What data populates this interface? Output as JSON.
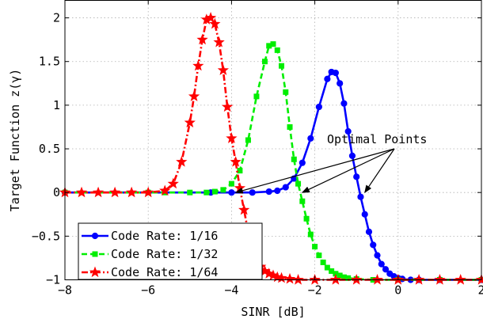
{
  "chart_data": {
    "type": "line",
    "xlabel": "SINR [dB]",
    "ylabel": "Target Function z(γ)",
    "xlim": [
      -8,
      2
    ],
    "ylim": [
      -1,
      2.2
    ],
    "xticks": [
      -8,
      -6,
      -4,
      -2,
      0,
      2
    ],
    "yticks": [
      -1,
      -0.5,
      0,
      0.5,
      1,
      1.5,
      2
    ],
    "xtick_labels": [
      "−8",
      "−6",
      "−4",
      "−2",
      "0",
      "2"
    ],
    "ytick_labels": [
      "−1",
      "−0.5",
      "0",
      "0.5",
      "1",
      "1.5",
      "2"
    ],
    "grid": true,
    "legend_position": "bottom-left",
    "annotation": {
      "text": "Optimal Points",
      "targets": [
        [
          -3.9,
          0
        ],
        [
          -2.3,
          0
        ],
        [
          -0.8,
          0
        ]
      ]
    },
    "series": [
      {
        "name": "Code Rate: 1/16",
        "color": "#0000ff",
        "marker": "circle",
        "dash": "solid",
        "x": [
          -8,
          -4.5,
          -4,
          -3.5,
          -3.1,
          -2.9,
          -2.7,
          -2.5,
          -2.3,
          -2.1,
          -1.9,
          -1.7,
          -1.6,
          -1.5,
          -1.4,
          -1.3,
          -1.2,
          -1.1,
          -1.0,
          -0.9,
          -0.8,
          -0.7,
          -0.6,
          -0.5,
          -0.4,
          -0.3,
          -0.2,
          -0.1,
          0.0,
          0.1,
          0.3,
          0.5,
          1.0,
          2.0
        ],
        "y": [
          0,
          0,
          0,
          0,
          0.01,
          0.02,
          0.06,
          0.16,
          0.34,
          0.62,
          0.98,
          1.3,
          1.38,
          1.37,
          1.25,
          1.02,
          0.7,
          0.42,
          0.18,
          -0.05,
          -0.25,
          -0.45,
          -0.6,
          -0.72,
          -0.82,
          -0.88,
          -0.93,
          -0.96,
          -0.98,
          -0.99,
          -1.0,
          -1.0,
          -1.0,
          -1.0
        ]
      },
      {
        "name": "Code Rate: 1/32",
        "color": "#00ee00",
        "marker": "square",
        "dash": "dashed",
        "x": [
          -8,
          -6,
          -5.6,
          -5.0,
          -4.6,
          -4.4,
          -4.2,
          -4.0,
          -3.8,
          -3.6,
          -3.4,
          -3.2,
          -3.1,
          -3.0,
          -2.9,
          -2.8,
          -2.7,
          -2.6,
          -2.5,
          -2.4,
          -2.3,
          -2.2,
          -2.1,
          -2.0,
          -1.9,
          -1.8,
          -1.7,
          -1.6,
          -1.5,
          -1.4,
          -1.3,
          -1.2,
          -1.0,
          -0.6,
          0,
          1,
          2
        ],
        "y": [
          0,
          0,
          0,
          0,
          0,
          0.01,
          0.03,
          0.1,
          0.25,
          0.6,
          1.1,
          1.5,
          1.68,
          1.7,
          1.63,
          1.45,
          1.15,
          0.75,
          0.38,
          0.1,
          -0.1,
          -0.3,
          -0.48,
          -0.62,
          -0.72,
          -0.8,
          -0.86,
          -0.9,
          -0.93,
          -0.95,
          -0.97,
          -0.98,
          -0.99,
          -1.0,
          -1.0,
          -1.0,
          -1.0
        ]
      },
      {
        "name": "Code Rate: 1/64",
        "color": "#ff0000",
        "marker": "star",
        "dash": "dashdot",
        "x": [
          -8,
          -7.6,
          -7.2,
          -6.8,
          -6.4,
          -6.0,
          -5.6,
          -5.4,
          -5.2,
          -5.0,
          -4.9,
          -4.8,
          -4.7,
          -4.6,
          -4.5,
          -4.4,
          -4.3,
          -4.2,
          -4.1,
          -4.0,
          -3.9,
          -3.8,
          -3.7,
          -3.6,
          -3.5,
          -3.4,
          -3.3,
          -3.2,
          -3.1,
          -3.0,
          -2.9,
          -2.8,
          -2.6,
          -2.4,
          -2.0,
          -1.5,
          -1.0,
          -0.5,
          0,
          0.5,
          1.0,
          1.5,
          2.0
        ],
        "y": [
          0,
          0,
          0,
          0,
          0,
          0,
          0.02,
          0.1,
          0.35,
          0.8,
          1.1,
          1.45,
          1.75,
          1.98,
          2.0,
          1.93,
          1.72,
          1.4,
          0.98,
          0.62,
          0.35,
          0.05,
          -0.2,
          -0.45,
          -0.63,
          -0.76,
          -0.85,
          -0.9,
          -0.93,
          -0.95,
          -0.97,
          -0.98,
          -0.99,
          -1.0,
          -1.0,
          -1.0,
          -1.0,
          -1.0,
          -1.0,
          -1.0,
          -1.0,
          -1.0,
          -1.0
        ]
      }
    ]
  }
}
